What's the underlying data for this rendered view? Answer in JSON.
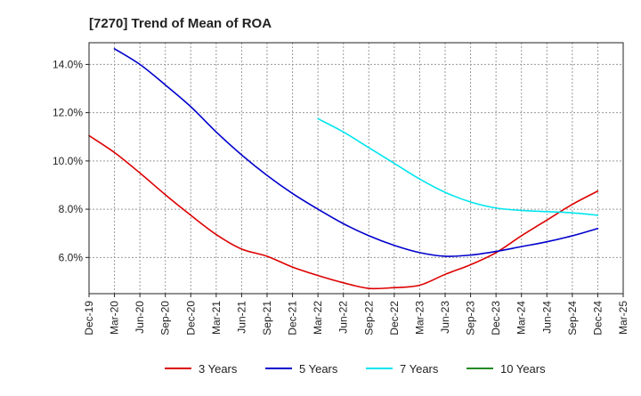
{
  "chart_data": {
    "type": "line",
    "title": "[7270]  Trend of Mean of ROA",
    "xlabel": "",
    "ylabel": "",
    "x": [
      "Dec-19",
      "Mar-20",
      "Jun-20",
      "Sep-20",
      "Dec-20",
      "Mar-21",
      "Jun-21",
      "Sep-21",
      "Dec-21",
      "Mar-22",
      "Jun-22",
      "Sep-22",
      "Dec-22",
      "Mar-23",
      "Jun-23",
      "Sep-23",
      "Dec-23",
      "Mar-24",
      "Jun-24",
      "Sep-24",
      "Dec-24",
      "Mar-25"
    ],
    "ylim": [
      4.5,
      14.9
    ],
    "yticks": [
      6,
      8,
      10,
      12,
      14
    ],
    "ytick_labels": [
      "6.0%",
      "8.0%",
      "10.0%",
      "12.0%",
      "14.0%"
    ],
    "grid": true,
    "legend_position": "bottom",
    "series": [
      {
        "name": "3 Years",
        "color": "#dd0000",
        "values": [
          11.05,
          10.35,
          9.5,
          8.6,
          7.75,
          6.95,
          6.35,
          6.05,
          5.6,
          5.25,
          4.95,
          4.72,
          4.75,
          4.85,
          5.3,
          5.7,
          6.2,
          6.9,
          7.55,
          8.2,
          8.75,
          null
        ]
      },
      {
        "name": "5 Years",
        "color": "#0000cc",
        "values": [
          null,
          14.65,
          14.0,
          13.15,
          12.25,
          11.2,
          10.25,
          9.4,
          8.65,
          8.0,
          7.4,
          6.9,
          6.5,
          6.2,
          6.05,
          6.1,
          6.25,
          6.45,
          6.65,
          6.9,
          7.2,
          null
        ]
      },
      {
        "name": "7 Years",
        "color": "#00e5ee",
        "values": [
          null,
          null,
          null,
          null,
          null,
          null,
          null,
          null,
          null,
          11.75,
          11.2,
          10.55,
          9.9,
          9.25,
          8.7,
          8.3,
          8.05,
          7.95,
          7.9,
          7.85,
          7.75,
          null
        ]
      },
      {
        "name": "10 Years",
        "color": "#228b22",
        "values": [
          null,
          null,
          null,
          null,
          null,
          null,
          null,
          null,
          null,
          null,
          null,
          null,
          null,
          null,
          null,
          null,
          null,
          null,
          null,
          null,
          null,
          null
        ]
      }
    ]
  }
}
